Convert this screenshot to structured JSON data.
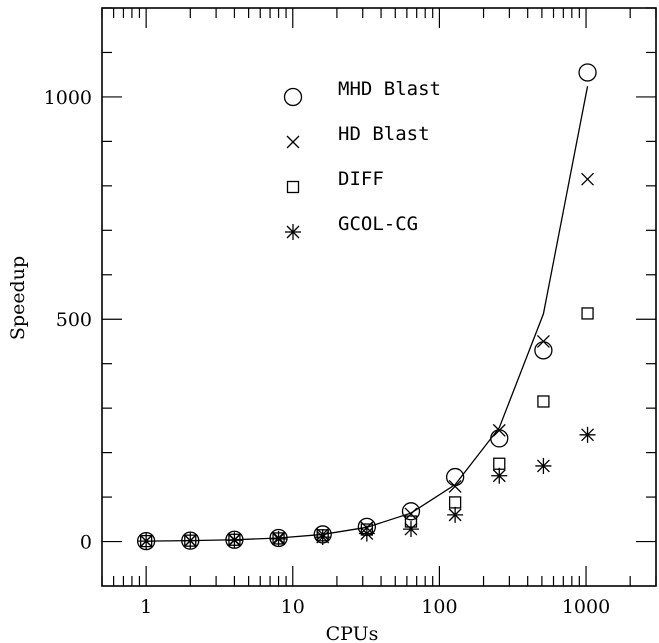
{
  "chart_data": {
    "type": "scatter",
    "title": "",
    "xlabel": "CPUs",
    "ylabel": "Speedup",
    "xscale": "log",
    "xlim": [
      0.5,
      3000
    ],
    "ylim": [
      -100,
      1200
    ],
    "x_ticks": [
      {
        "value": 1,
        "label": "1"
      },
      {
        "value": 10,
        "label": "10"
      },
      {
        "value": 100,
        "label": "100"
      },
      {
        "value": 1000,
        "label": "1000"
      }
    ],
    "y_ticks": [
      {
        "value": 0,
        "label": "0"
      },
      {
        "value": 500,
        "label": "500"
      },
      {
        "value": 1000,
        "label": "1000"
      }
    ],
    "legend_position": "top-center",
    "series": [
      {
        "name": "MHD Blast",
        "marker": "circle",
        "x": [
          1,
          2,
          4,
          8,
          16,
          32,
          64,
          128,
          256,
          512,
          1024
        ],
        "y": [
          1,
          2,
          4,
          8,
          16,
          33,
          68,
          145,
          232,
          430,
          1055
        ]
      },
      {
        "name": "HD Blast",
        "marker": "cross",
        "x": [
          1,
          2,
          4,
          8,
          16,
          32,
          64,
          128,
          256,
          512,
          1024
        ],
        "y": [
          1,
          2,
          4,
          8,
          16,
          31,
          62,
          124,
          250,
          450,
          815
        ]
      },
      {
        "name": "DIFF",
        "marker": "square",
        "x": [
          1,
          2,
          4,
          8,
          16,
          32,
          64,
          128,
          256,
          512,
          1024
        ],
        "y": [
          1,
          2,
          4,
          7,
          14,
          27,
          45,
          88,
          175,
          315,
          513
        ]
      },
      {
        "name": "GCOL-CG",
        "marker": "asterisk",
        "x": [
          1,
          2,
          4,
          8,
          16,
          32,
          64,
          128,
          256,
          512,
          1024
        ],
        "y": [
          1,
          2,
          3,
          6,
          10,
          18,
          28,
          60,
          148,
          170,
          240
        ]
      }
    ],
    "fit_line": {
      "x": [
        1,
        2,
        4,
        8,
        16,
        32,
        64,
        128,
        256,
        512,
        1024
      ],
      "y": [
        1,
        2,
        4,
        8,
        16,
        32,
        64,
        128,
        256,
        512,
        1024
      ]
    }
  }
}
